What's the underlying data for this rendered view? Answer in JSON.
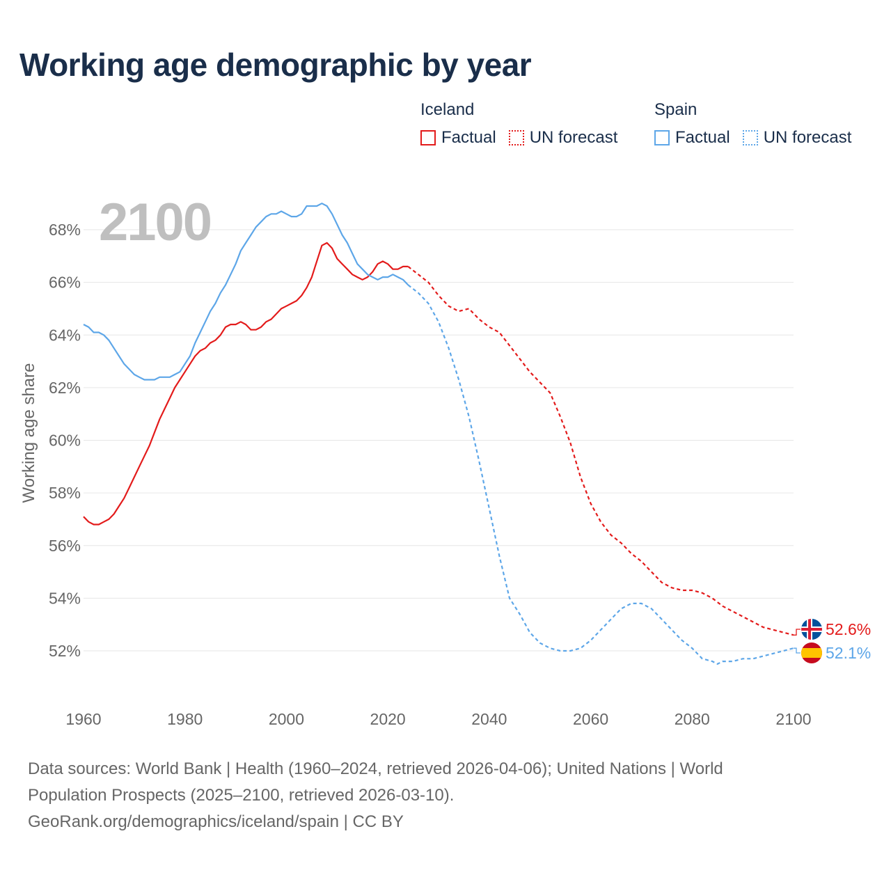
{
  "title": "Working age demographic by year",
  "year_display": "2100",
  "legend": {
    "iceland": {
      "name": "Iceland",
      "factual": "Factual",
      "forecast": "UN forecast"
    },
    "spain": {
      "name": "Spain",
      "factual": "Factual",
      "forecast": "UN forecast"
    }
  },
  "source": {
    "line1": "Data sources: World Bank | Health (1960–2024, retrieved 2026-04-06); United Nations | World",
    "line2": "Population Prospects (2025–2100, retrieved 2026-03-10).",
    "line3": "GeoRank.org/demographics/iceland/spain | CC BY"
  },
  "colors": {
    "iceland": "#e31b1b",
    "spain": "#5da6e8",
    "grid": "#e6e6e6",
    "axis_text": "#666666",
    "title": "#1a2e4a"
  },
  "chart_data": {
    "type": "line",
    "title": "Working age demographic by year",
    "xlabel": "",
    "ylabel": "Working age share",
    "xlim": [
      1960,
      2100
    ],
    "ylim": [
      50.5,
      69.5
    ],
    "x_ticks": [
      1960,
      1980,
      2000,
      2020,
      2040,
      2060,
      2080,
      2100
    ],
    "y_ticks": [
      52,
      54,
      56,
      58,
      60,
      62,
      64,
      66,
      68
    ],
    "y_tick_labels": [
      "52%",
      "54%",
      "56%",
      "58%",
      "60%",
      "62%",
      "64%",
      "66%",
      "68%"
    ],
    "series": [
      {
        "name": "Iceland",
        "color": "#e31b1b",
        "end_label": "52.6%",
        "factual": {
          "x": [
            1960,
            1961,
            1962,
            1963,
            1964,
            1965,
            1966,
            1967,
            1968,
            1969,
            1970,
            1971,
            1972,
            1973,
            1974,
            1975,
            1976,
            1977,
            1978,
            1979,
            1980,
            1981,
            1982,
            1983,
            1984,
            1985,
            1986,
            1987,
            1988,
            1989,
            1990,
            1991,
            1992,
            1993,
            1994,
            1995,
            1996,
            1997,
            1998,
            1999,
            2000,
            2001,
            2002,
            2003,
            2004,
            2005,
            2006,
            2007,
            2008,
            2009,
            2010,
            2011,
            2012,
            2013,
            2014,
            2015,
            2016,
            2017,
            2018,
            2019,
            2020,
            2021,
            2022,
            2023,
            2024
          ],
          "y": [
            57.1,
            56.9,
            56.8,
            56.8,
            56.9,
            57.0,
            57.2,
            57.5,
            57.8,
            58.2,
            58.6,
            59.0,
            59.4,
            59.8,
            60.3,
            60.8,
            61.2,
            61.6,
            62.0,
            62.3,
            62.6,
            62.9,
            63.2,
            63.4,
            63.5,
            63.7,
            63.8,
            64.0,
            64.3,
            64.4,
            64.4,
            64.5,
            64.4,
            64.2,
            64.2,
            64.3,
            64.5,
            64.6,
            64.8,
            65.0,
            65.1,
            65.2,
            65.3,
            65.5,
            65.8,
            66.2,
            66.8,
            67.4,
            67.5,
            67.3,
            66.9,
            66.7,
            66.5,
            66.3,
            66.2,
            66.1,
            66.2,
            66.4,
            66.7,
            66.8,
            66.7,
            66.5,
            66.5,
            66.6,
            66.6
          ]
        },
        "forecast": {
          "x": [
            2024,
            2026,
            2028,
            2030,
            2032,
            2034,
            2036,
            2037,
            2038,
            2040,
            2042,
            2044,
            2046,
            2048,
            2050,
            2052,
            2054,
            2056,
            2058,
            2060,
            2062,
            2064,
            2066,
            2068,
            2070,
            2072,
            2074,
            2076,
            2078,
            2080,
            2082,
            2084,
            2086,
            2088,
            2090,
            2092,
            2094,
            2096,
            2098,
            2100
          ],
          "y": [
            66.6,
            66.3,
            66.0,
            65.5,
            65.1,
            64.9,
            65.0,
            64.8,
            64.6,
            64.3,
            64.1,
            63.6,
            63.1,
            62.6,
            62.2,
            61.8,
            60.9,
            59.9,
            58.6,
            57.6,
            56.9,
            56.4,
            56.1,
            55.7,
            55.4,
            55.0,
            54.6,
            54.4,
            54.3,
            54.3,
            54.2,
            54.0,
            53.7,
            53.5,
            53.3,
            53.1,
            52.9,
            52.8,
            52.7,
            52.6
          ]
        }
      },
      {
        "name": "Spain",
        "color": "#5da6e8",
        "end_label": "52.1%",
        "factual": {
          "x": [
            1960,
            1961,
            1962,
            1963,
            1964,
            1965,
            1966,
            1967,
            1968,
            1969,
            1970,
            1971,
            1972,
            1973,
            1974,
            1975,
            1976,
            1977,
            1978,
            1979,
            1980,
            1981,
            1982,
            1983,
            1984,
            1985,
            1986,
            1987,
            1988,
            1989,
            1990,
            1991,
            1992,
            1993,
            1994,
            1995,
            1996,
            1997,
            1998,
            1999,
            2000,
            2001,
            2002,
            2003,
            2004,
            2005,
            2006,
            2007,
            2008,
            2009,
            2010,
            2011,
            2012,
            2013,
            2014,
            2015,
            2016,
            2017,
            2018,
            2019,
            2020,
            2021,
            2022,
            2023,
            2024
          ],
          "y": [
            64.4,
            64.3,
            64.1,
            64.1,
            64.0,
            63.8,
            63.5,
            63.2,
            62.9,
            62.7,
            62.5,
            62.4,
            62.3,
            62.3,
            62.3,
            62.4,
            62.4,
            62.4,
            62.5,
            62.6,
            62.9,
            63.2,
            63.7,
            64.1,
            64.5,
            64.9,
            65.2,
            65.6,
            65.9,
            66.3,
            66.7,
            67.2,
            67.5,
            67.8,
            68.1,
            68.3,
            68.5,
            68.6,
            68.6,
            68.7,
            68.6,
            68.5,
            68.5,
            68.6,
            68.9,
            68.9,
            68.9,
            69.0,
            68.9,
            68.6,
            68.2,
            67.8,
            67.5,
            67.1,
            66.7,
            66.5,
            66.3,
            66.2,
            66.1,
            66.2,
            66.2,
            66.3,
            66.2,
            66.1,
            65.9
          ]
        },
        "forecast": {
          "x": [
            2024,
            2026,
            2028,
            2030,
            2032,
            2034,
            2036,
            2038,
            2040,
            2042,
            2044,
            2046,
            2048,
            2050,
            2052,
            2054,
            2056,
            2058,
            2060,
            2062,
            2064,
            2066,
            2068,
            2070,
            2072,
            2074,
            2076,
            2078,
            2080,
            2082,
            2084,
            2085,
            2086,
            2088,
            2090,
            2092,
            2094,
            2096,
            2098,
            2100
          ],
          "y": [
            65.9,
            65.6,
            65.2,
            64.5,
            63.5,
            62.3,
            60.9,
            59.2,
            57.4,
            55.6,
            54.0,
            53.4,
            52.7,
            52.3,
            52.1,
            52.0,
            52.0,
            52.1,
            52.4,
            52.8,
            53.2,
            53.6,
            53.8,
            53.8,
            53.6,
            53.2,
            52.8,
            52.4,
            52.1,
            51.7,
            51.6,
            51.5,
            51.6,
            51.6,
            51.7,
            51.7,
            51.8,
            51.9,
            52.0,
            52.1
          ]
        }
      }
    ]
  }
}
